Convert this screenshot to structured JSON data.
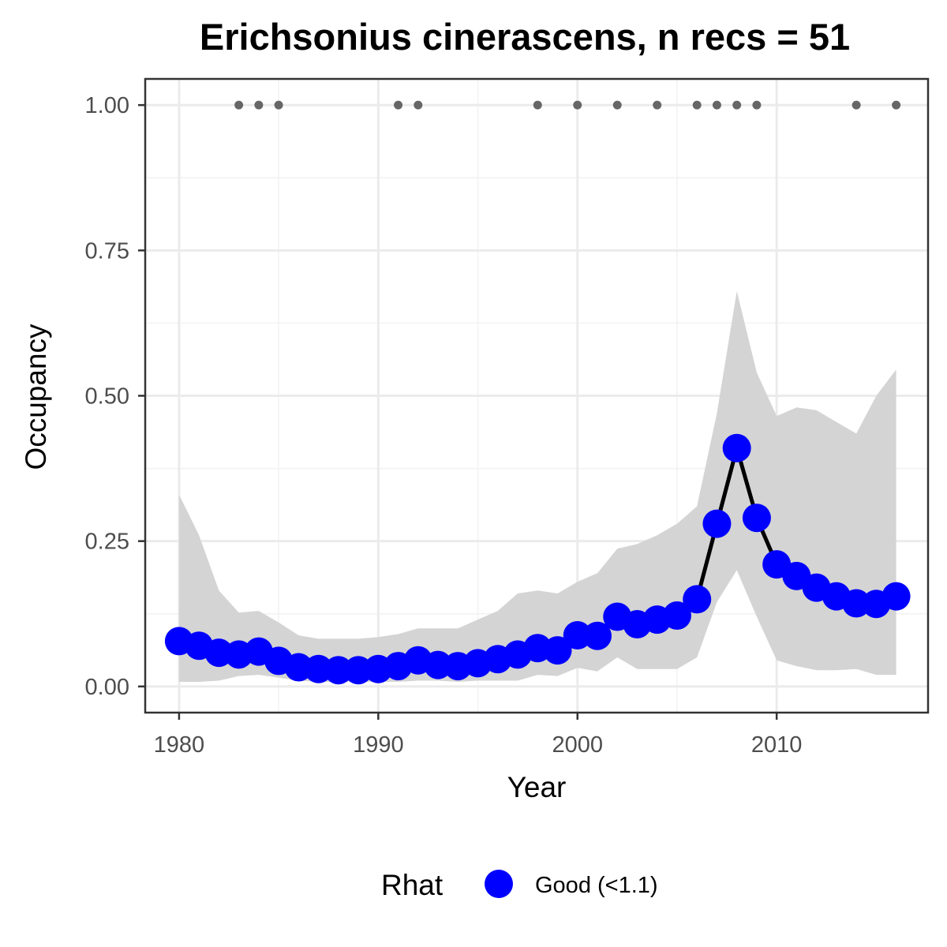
{
  "chart_data": {
    "type": "line",
    "title": "Erichsonius cinerascens, n recs = 51",
    "xlabel": "Year",
    "ylabel": "Occupancy",
    "xlim": [
      1978.3,
      2017.6
    ],
    "ylim": [
      -0.045,
      1.045
    ],
    "x_ticks": [
      1980,
      1990,
      2000,
      2010
    ],
    "x_tick_labels": [
      "1980",
      "1990",
      "2000",
      "2010"
    ],
    "y_ticks": [
      0,
      0.25,
      0.5,
      0.75,
      1
    ],
    "y_tick_labels": [
      "0.00",
      "0.25",
      "0.50",
      "0.75",
      "1.00"
    ],
    "grid": true,
    "series": [
      {
        "name": "Good (<1.1)",
        "x": [
          1980,
          1981,
          1982,
          1983,
          1984,
          1985,
          1986,
          1987,
          1988,
          1989,
          1990,
          1991,
          1992,
          1993,
          1994,
          1995,
          1996,
          1997,
          1998,
          1999,
          2000,
          2001,
          2002,
          2003,
          2004,
          2005,
          2006,
          2007,
          2008,
          2009,
          2010,
          2011,
          2012,
          2013,
          2014,
          2015,
          2016
        ],
        "y": [
          0.078,
          0.07,
          0.058,
          0.055,
          0.06,
          0.044,
          0.033,
          0.03,
          0.028,
          0.028,
          0.03,
          0.035,
          0.045,
          0.037,
          0.035,
          0.04,
          0.047,
          0.055,
          0.066,
          0.062,
          0.088,
          0.087,
          0.12,
          0.107,
          0.115,
          0.122,
          0.15,
          0.28,
          0.41,
          0.29,
          0.21,
          0.19,
          0.17,
          0.155,
          0.143,
          0.142,
          0.155
        ],
        "lower": [
          0.008,
          0.008,
          0.01,
          0.018,
          0.02,
          0.015,
          0.01,
          0.008,
          0.008,
          0.008,
          0.008,
          0.008,
          0.01,
          0.01,
          0.008,
          0.01,
          0.01,
          0.01,
          0.02,
          0.018,
          0.032,
          0.026,
          0.05,
          0.03,
          0.03,
          0.03,
          0.05,
          0.145,
          0.2,
          0.12,
          0.045,
          0.035,
          0.028,
          0.028,
          0.03,
          0.02,
          0.02
        ],
        "upper": [
          0.33,
          0.26,
          0.165,
          0.127,
          0.13,
          0.11,
          0.088,
          0.082,
          0.082,
          0.082,
          0.085,
          0.09,
          0.1,
          0.1,
          0.1,
          0.115,
          0.13,
          0.16,
          0.165,
          0.16,
          0.18,
          0.195,
          0.237,
          0.245,
          0.26,
          0.28,
          0.31,
          0.47,
          0.68,
          0.54,
          0.465,
          0.48,
          0.475,
          0.455,
          0.435,
          0.5,
          0.545
        ],
        "color": "#0000ff",
        "line_color": "#000000",
        "ribbon_color": "#d4d4d4"
      }
    ],
    "record_years": [
      1983,
      1984,
      1985,
      1991,
      1992,
      1998,
      2000,
      2002,
      2004,
      2006,
      2007,
      2008,
      2009,
      2014,
      2016
    ],
    "record_value": 1.0,
    "record_color": "#666666",
    "legend": {
      "title": "Rhat",
      "position": "bottom",
      "entries": [
        {
          "label": "Good (<1.1)",
          "color": "#0000ff"
        }
      ]
    }
  }
}
